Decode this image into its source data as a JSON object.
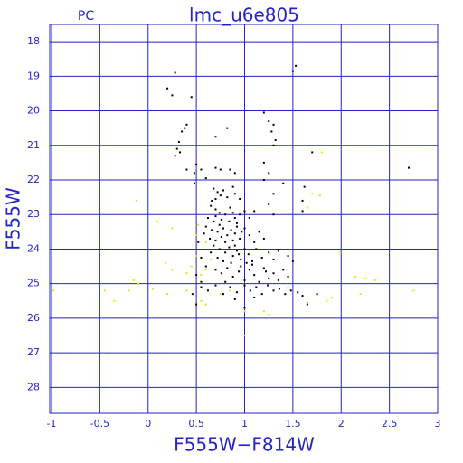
{
  "chart_data": {
    "type": "scatter",
    "title": "lmc_u6e805",
    "subtitle": "PC",
    "x_label": "F555W−F814W",
    "y_label": "F555W",
    "xlim": [
      -1,
      3
    ],
    "ylim": [
      28.75,
      17.5
    ],
    "xticks": [
      -1,
      -0.5,
      0,
      0.5,
      1,
      1.5,
      2,
      2.5,
      3
    ],
    "yticks": [
      18,
      19,
      20,
      21,
      22,
      23,
      24,
      25,
      26,
      27,
      28
    ],
    "grid": true,
    "grid_color": "#2323c8",
    "series": [
      {
        "color": "#000000",
        "x": [
          0.28,
          0.2,
          0.25,
          0.45,
          1.5,
          1.53,
          0.4,
          0.38,
          0.35,
          0.32,
          0.3,
          0.28,
          0.33,
          0.82,
          0.7,
          1.2,
          1.25,
          1.3,
          1.28,
          1.32,
          1.3,
          1.7,
          2.7,
          0.4,
          0.48,
          0.5,
          0.55,
          0.6,
          0.7,
          0.75,
          0.85,
          0.9,
          1.2,
          1.25,
          1.2,
          1.3,
          1.4,
          1.62,
          1.6,
          1.25,
          1.3,
          1.1,
          0.68,
          0.72,
          0.75,
          0.7,
          0.78,
          0.82,
          0.9,
          0.66,
          0.88,
          0.95,
          0.65,
          0.7,
          0.74,
          0.8,
          0.85,
          0.9,
          0.95,
          1.0,
          0.62,
          0.68,
          0.76,
          0.84,
          0.92,
          1.05,
          0.7,
          0.88,
          0.6,
          0.66,
          0.72,
          0.78,
          0.82,
          0.86,
          0.9,
          0.95,
          1.0,
          1.05,
          0.64,
          0.7,
          0.76,
          0.8,
          0.88,
          0.92,
          1.1,
          1.15,
          1.2,
          0.58,
          0.97,
          0.74,
          0.68,
          0.74,
          0.8,
          0.84,
          0.88,
          0.92,
          0.96,
          1.0,
          1.04,
          1.08,
          1.12,
          1.18,
          1.25,
          1.3,
          0.72,
          0.78,
          0.86,
          0.94,
          1.35,
          1.45,
          1.5,
          0.65,
          0.9,
          1.02,
          0.6,
          0.7,
          0.76,
          0.82,
          0.88,
          0.94,
          1.0,
          1.05,
          1.1,
          1.15,
          1.2,
          1.25,
          1.3,
          1.35,
          1.4,
          1.45,
          0.5,
          0.55,
          0.8,
          0.96,
          1.08,
          1.22,
          0.55,
          0.62,
          0.7,
          0.78,
          0.85,
          0.92,
          1.0,
          1.06,
          1.12,
          1.18,
          1.24,
          1.3,
          1.36,
          1.42,
          1.48,
          1.55,
          1.6,
          0.9,
          1.1,
          1.65,
          1.75,
          0.46,
          0.48,
          0.52,
          0.55,
          0.5,
          1.6,
          1.0
        ],
        "values": [
          18.9,
          19.35,
          19.55,
          19.6,
          18.85,
          18.7,
          20.4,
          20.5,
          20.6,
          20.9,
          21.1,
          21.3,
          21.2,
          20.5,
          20.75,
          20.05,
          20.3,
          20.4,
          20.6,
          20.85,
          21.0,
          21.2,
          21.65,
          21.7,
          21.8,
          21.55,
          21.7,
          21.95,
          21.65,
          21.7,
          21.7,
          21.8,
          21.5,
          21.8,
          22.0,
          22.4,
          22.1,
          22.2,
          22.6,
          22.7,
          23.0,
          22.9,
          22.25,
          22.35,
          22.45,
          22.55,
          22.3,
          22.5,
          22.4,
          22.6,
          22.2,
          22.55,
          22.75,
          22.85,
          22.95,
          23.0,
          22.8,
          23.1,
          23.0,
          22.9,
          23.1,
          23.2,
          23.15,
          23.2,
          23.25,
          23.1,
          23.05,
          22.95,
          23.35,
          23.45,
          23.5,
          23.4,
          23.6,
          23.45,
          23.55,
          23.7,
          23.4,
          23.6,
          23.7,
          23.75,
          23.65,
          23.8,
          23.75,
          23.35,
          23.8,
          23.5,
          23.7,
          23.55,
          23.5,
          23.3,
          23.9,
          24.0,
          24.1,
          23.95,
          24.2,
          24.05,
          24.3,
          24.0,
          24.15,
          24.35,
          24.0,
          24.25,
          24.1,
          24.3,
          24.25,
          24.35,
          24.4,
          24.15,
          24.05,
          24.2,
          24.35,
          24.1,
          23.9,
          24.4,
          24.5,
          24.6,
          24.7,
          24.55,
          24.8,
          24.65,
          24.9,
          24.6,
          24.75,
          24.95,
          24.55,
          24.85,
          24.7,
          24.9,
          24.6,
          24.8,
          24.75,
          24.95,
          24.95,
          24.5,
          24.45,
          24.65,
          25.1,
          25.2,
          25.05,
          25.3,
          25.1,
          25.25,
          25.05,
          25.2,
          25.1,
          25.3,
          25.05,
          25.2,
          25.15,
          25.3,
          25.2,
          25.25,
          25.35,
          25.45,
          25.4,
          25.6,
          25.3,
          25.3,
          22.1,
          23.8,
          24.25,
          25.6,
          22.9,
          25.7
        ]
      },
      {
        "color": "#e6e600",
        "x": [
          -0.12,
          0.1,
          0.25,
          0.52,
          0.5,
          0.5,
          0.18,
          0.25,
          0.4,
          0.55,
          0.6,
          0.45,
          -0.15,
          -0.2,
          0.2,
          -0.35,
          -0.45,
          -0.1,
          0.05,
          0.4,
          0.55,
          0.6,
          0.75,
          0.85,
          1.0,
          1.2,
          1.25,
          1.45,
          1.65,
          1.85,
          1.7,
          1.78,
          1.65,
          1.8,
          1.99,
          2.15,
          2.25,
          2.35,
          2.2,
          1.9,
          2.75,
          -0.98,
          1.0,
          0.65,
          0.6
        ],
        "values": [
          22.6,
          23.2,
          23.4,
          23.3,
          23.6,
          24.2,
          24.4,
          24.6,
          24.7,
          24.75,
          24.6,
          24.5,
          24.9,
          25.2,
          25.3,
          25.5,
          25.2,
          25.0,
          25.15,
          25.2,
          25.5,
          25.6,
          25.3,
          25.2,
          25.8,
          25.8,
          25.9,
          25.1,
          25.55,
          25.5,
          22.4,
          22.45,
          22.8,
          21.2,
          24.1,
          24.8,
          24.85,
          24.9,
          25.3,
          25.4,
          25.2,
          25.2,
          26.5,
          24.3,
          23.8
        ]
      }
    ]
  }
}
